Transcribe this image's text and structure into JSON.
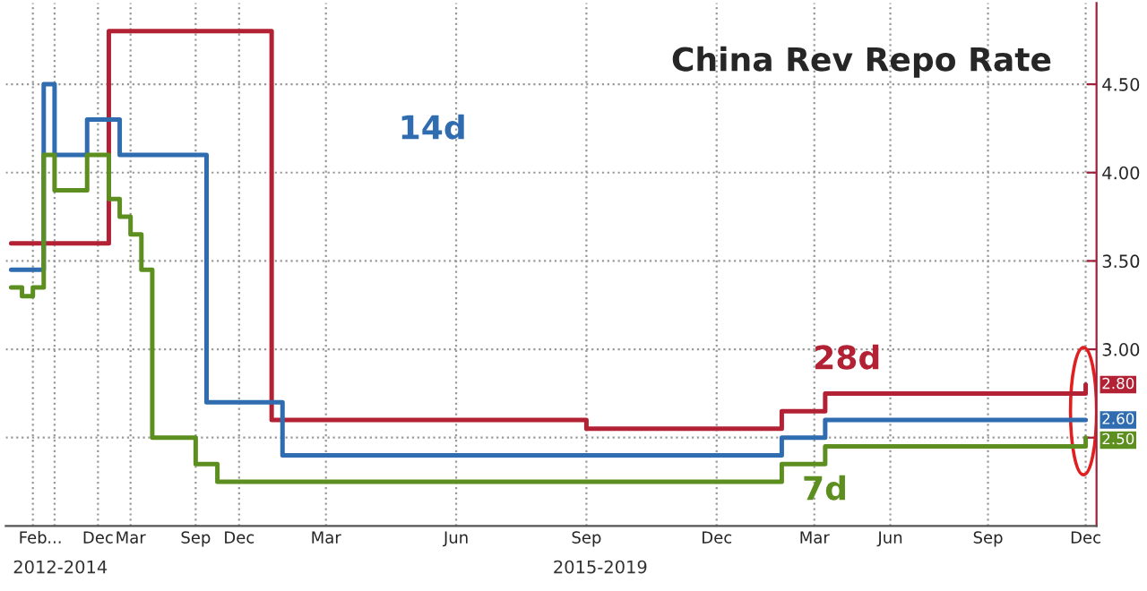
{
  "chart_data": {
    "type": "step",
    "title": "China Rev Repo Rate",
    "annotations": [
      "2012-2014",
      "2015-2019"
    ],
    "categories": [
      null,
      null,
      "Feb",
      null,
      "...",
      null,
      null,
      null,
      "Dec",
      null,
      null,
      "Mar",
      null,
      null,
      null,
      null,
      null,
      "Sep",
      null,
      null,
      null,
      "Dec",
      null,
      null,
      null,
      null,
      null,
      null,
      null,
      "Mar",
      null,
      null,
      null,
      null,
      null,
      null,
      null,
      null,
      null,
      null,
      null,
      "Jun",
      null,
      null,
      null,
      null,
      null,
      null,
      null,
      null,
      null,
      null,
      null,
      "Sep",
      null,
      null,
      null,
      null,
      null,
      null,
      null,
      null,
      null,
      null,
      null,
      "Dec",
      null,
      null,
      null,
      null,
      null,
      null,
      null,
      null,
      "Mar",
      null,
      null,
      null,
      null,
      null,
      null,
      "Jun",
      null,
      null,
      null,
      null,
      null,
      null,
      null,
      null,
      "Sep",
      null,
      null,
      null,
      null,
      null,
      null,
      null,
      null,
      "Dec"
    ],
    "ylim": [
      2.0,
      4.96
    ],
    "yticks": [
      {
        "value": 2.5,
        "label": null
      },
      {
        "value": 3.0,
        "label": "3.00"
      },
      {
        "value": 3.5,
        "label": "3.50"
      },
      {
        "value": 4.0,
        "label": "4.00"
      },
      {
        "value": 4.5,
        "label": "4.50"
      }
    ],
    "grid": true,
    "legend": false,
    "series": [
      {
        "name": "28d",
        "color": "#b22234",
        "values": [
          3.6,
          3.6,
          3.6,
          3.6,
          3.6,
          3.6,
          3.6,
          3.6,
          3.6,
          4.8,
          4.8,
          4.8,
          4.8,
          4.8,
          4.8,
          4.8,
          4.8,
          4.8,
          4.8,
          4.8,
          4.8,
          4.8,
          4.8,
          4.8,
          2.6,
          2.6,
          2.6,
          2.6,
          2.6,
          2.6,
          2.6,
          2.6,
          2.6,
          2.6,
          2.6,
          2.6,
          2.6,
          2.6,
          2.6,
          2.6,
          2.6,
          2.6,
          2.6,
          2.6,
          2.6,
          2.6,
          2.6,
          2.6,
          2.6,
          2.6,
          2.6,
          2.6,
          2.6,
          2.55,
          2.55,
          2.55,
          2.55,
          2.55,
          2.55,
          2.55,
          2.55,
          2.55,
          2.55,
          2.55,
          2.55,
          2.55,
          2.55,
          2.55,
          2.55,
          2.55,
          2.55,
          2.65,
          2.65,
          2.65,
          2.65,
          2.75,
          2.75,
          2.75,
          2.75,
          2.75,
          2.75,
          2.75,
          2.75,
          2.75,
          2.75,
          2.75,
          2.75,
          2.75,
          2.75,
          2.75,
          2.75,
          2.75,
          2.75,
          2.75,
          2.75,
          2.75,
          2.75,
          2.75,
          2.75,
          2.8
        ],
        "value_labels": [
          null,
          null,
          null,
          null,
          null,
          null,
          null,
          null,
          null,
          null,
          null,
          null,
          null,
          null,
          null,
          null,
          null,
          null,
          null,
          null,
          null,
          null,
          null,
          null,
          null,
          null,
          null,
          null,
          null,
          null,
          null,
          null,
          null,
          null,
          null,
          null,
          null,
          null,
          null,
          null,
          null,
          null,
          null,
          null,
          null,
          null,
          null,
          null,
          null,
          null,
          null,
          null,
          null,
          null,
          null,
          null,
          null,
          null,
          null,
          null,
          null,
          null,
          null,
          null,
          null,
          null,
          null,
          null,
          null,
          null,
          null,
          null,
          null,
          null,
          null,
          null,
          null,
          null,
          null,
          null,
          null,
          null,
          null,
          null,
          null,
          null,
          null,
          null,
          null,
          null,
          null,
          null,
          null,
          null,
          null,
          null,
          null,
          null,
          null,
          "2.80"
        ]
      },
      {
        "name": "14d",
        "color": "#2f6db0",
        "values": [
          3.45,
          3.45,
          3.45,
          4.5,
          4.1,
          4.1,
          4.1,
          4.3,
          4.3,
          4.3,
          4.1,
          4.1,
          4.1,
          4.1,
          4.1,
          4.1,
          4.1,
          4.1,
          2.7,
          2.7,
          2.7,
          2.7,
          2.7,
          2.7,
          2.7,
          2.4,
          2.4,
          2.4,
          2.4,
          2.4,
          2.4,
          2.4,
          2.4,
          2.4,
          2.4,
          2.4,
          2.4,
          2.4,
          2.4,
          2.4,
          2.4,
          2.4,
          2.4,
          2.4,
          2.4,
          2.4,
          2.4,
          2.4,
          2.4,
          2.4,
          2.4,
          2.4,
          2.4,
          2.4,
          2.4,
          2.4,
          2.4,
          2.4,
          2.4,
          2.4,
          2.4,
          2.4,
          2.4,
          2.4,
          2.4,
          2.4,
          2.4,
          2.4,
          2.4,
          2.4,
          2.4,
          2.5,
          2.5,
          2.5,
          2.5,
          2.6,
          2.6,
          2.6,
          2.6,
          2.6,
          2.6,
          2.6,
          2.6,
          2.6,
          2.6,
          2.6,
          2.6,
          2.6,
          2.6,
          2.6,
          2.6,
          2.6,
          2.6,
          2.6,
          2.6,
          2.6,
          2.6,
          2.6,
          2.6,
          2.6
        ],
        "value_labels": [
          null,
          null,
          null,
          null,
          null,
          null,
          null,
          null,
          null,
          null,
          null,
          null,
          null,
          null,
          null,
          null,
          null,
          null,
          null,
          null,
          null,
          null,
          null,
          null,
          null,
          null,
          null,
          null,
          null,
          null,
          null,
          null,
          null,
          null,
          null,
          null,
          null,
          null,
          null,
          null,
          null,
          null,
          null,
          null,
          null,
          null,
          null,
          null,
          null,
          null,
          null,
          null,
          null,
          null,
          null,
          null,
          null,
          null,
          null,
          null,
          null,
          null,
          null,
          null,
          null,
          null,
          null,
          null,
          null,
          null,
          null,
          null,
          null,
          null,
          null,
          null,
          null,
          null,
          null,
          null,
          null,
          null,
          null,
          null,
          null,
          null,
          null,
          null,
          null,
          null,
          null,
          null,
          null,
          null,
          null,
          null,
          null,
          null,
          null,
          "2.60"
        ]
      },
      {
        "name": "7d",
        "color": "#5c8f1f",
        "values": [
          3.35,
          3.3,
          3.35,
          4.1,
          3.9,
          3.9,
          3.9,
          4.1,
          4.1,
          3.85,
          3.75,
          3.65,
          3.45,
          2.5,
          2.5,
          2.5,
          2.5,
          2.35,
          2.35,
          2.25,
          2.25,
          2.25,
          2.25,
          2.25,
          2.25,
          2.25,
          2.25,
          2.25,
          2.25,
          2.25,
          2.25,
          2.25,
          2.25,
          2.25,
          2.25,
          2.25,
          2.25,
          2.25,
          2.25,
          2.25,
          2.25,
          2.25,
          2.25,
          2.25,
          2.25,
          2.25,
          2.25,
          2.25,
          2.25,
          2.25,
          2.25,
          2.25,
          2.25,
          2.25,
          2.25,
          2.25,
          2.25,
          2.25,
          2.25,
          2.25,
          2.25,
          2.25,
          2.25,
          2.25,
          2.25,
          2.25,
          2.25,
          2.25,
          2.25,
          2.25,
          2.25,
          2.35,
          2.35,
          2.35,
          2.35,
          2.45,
          2.45,
          2.45,
          2.45,
          2.45,
          2.45,
          2.45,
          2.45,
          2.45,
          2.45,
          2.45,
          2.45,
          2.45,
          2.45,
          2.45,
          2.45,
          2.45,
          2.45,
          2.45,
          2.45,
          2.45,
          2.45,
          2.45,
          2.45,
          2.5
        ],
        "value_labels": [
          null,
          null,
          null,
          null,
          null,
          null,
          null,
          null,
          null,
          null,
          null,
          null,
          null,
          null,
          null,
          null,
          null,
          null,
          null,
          null,
          null,
          null,
          null,
          null,
          null,
          null,
          null,
          null,
          null,
          null,
          null,
          null,
          null,
          null,
          null,
          null,
          null,
          null,
          null,
          null,
          null,
          null,
          null,
          null,
          null,
          null,
          null,
          null,
          null,
          null,
          null,
          null,
          null,
          null,
          null,
          null,
          null,
          null,
          null,
          null,
          null,
          null,
          null,
          null,
          null,
          null,
          null,
          null,
          null,
          null,
          null,
          null,
          null,
          null,
          null,
          null,
          null,
          null,
          null,
          null,
          null,
          null,
          null,
          null,
          null,
          null,
          null,
          null,
          null,
          null,
          null,
          null,
          null,
          null,
          null,
          null,
          null,
          null,
          null,
          "2.50"
        ]
      }
    ]
  }
}
